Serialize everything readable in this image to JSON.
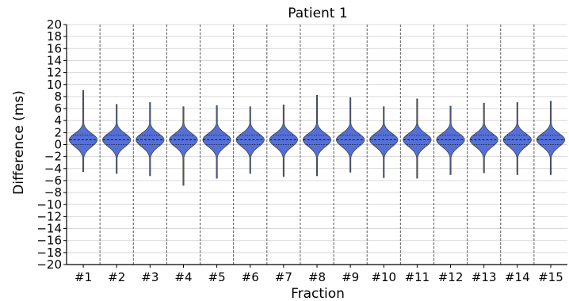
{
  "chart_data": {
    "type": "violin",
    "title": "Patient 1",
    "xlabel": "Fraction",
    "ylabel": "Difference (ms)",
    "ylim": [
      -20,
      20
    ],
    "yticks": [
      20,
      18,
      16,
      14,
      12,
      10,
      8,
      6,
      4,
      2,
      0,
      -2,
      -4,
      -6,
      -8,
      -10,
      -12,
      -14,
      -16,
      -18,
      -20
    ],
    "grid": true,
    "fill_color": "#5470d8",
    "categories": [
      "#1",
      "#2",
      "#3",
      "#4",
      "#5",
      "#6",
      "#7",
      "#8",
      "#9",
      "#10",
      "#11",
      "#12",
      "#13",
      "#14",
      "#15"
    ],
    "series": [
      {
        "violins": [
          {
            "min": -4.5,
            "max": 9.0,
            "median": 0.8
          },
          {
            "min": -4.8,
            "max": 6.7,
            "median": 0.8
          },
          {
            "min": -5.2,
            "max": 7.0,
            "median": 0.8
          },
          {
            "min": -6.8,
            "max": 6.3,
            "median": 0.8
          },
          {
            "min": -5.6,
            "max": 6.5,
            "median": 0.8
          },
          {
            "min": -4.8,
            "max": 6.3,
            "median": 0.8
          },
          {
            "min": -5.3,
            "max": 6.6,
            "median": 0.8
          },
          {
            "min": -5.2,
            "max": 8.2,
            "median": 0.8
          },
          {
            "min": -4.6,
            "max": 7.8,
            "median": 0.8
          },
          {
            "min": -5.5,
            "max": 6.3,
            "median": 0.8
          },
          {
            "min": -5.6,
            "max": 7.6,
            "median": 0.8
          },
          {
            "min": -5.0,
            "max": 6.4,
            "median": 0.8
          },
          {
            "min": -4.7,
            "max": 6.9,
            "median": 0.8
          },
          {
            "min": -5.0,
            "max": 7.0,
            "median": 0.8
          },
          {
            "min": -5.0,
            "max": 7.2,
            "median": 0.8
          }
        ]
      }
    ]
  }
}
